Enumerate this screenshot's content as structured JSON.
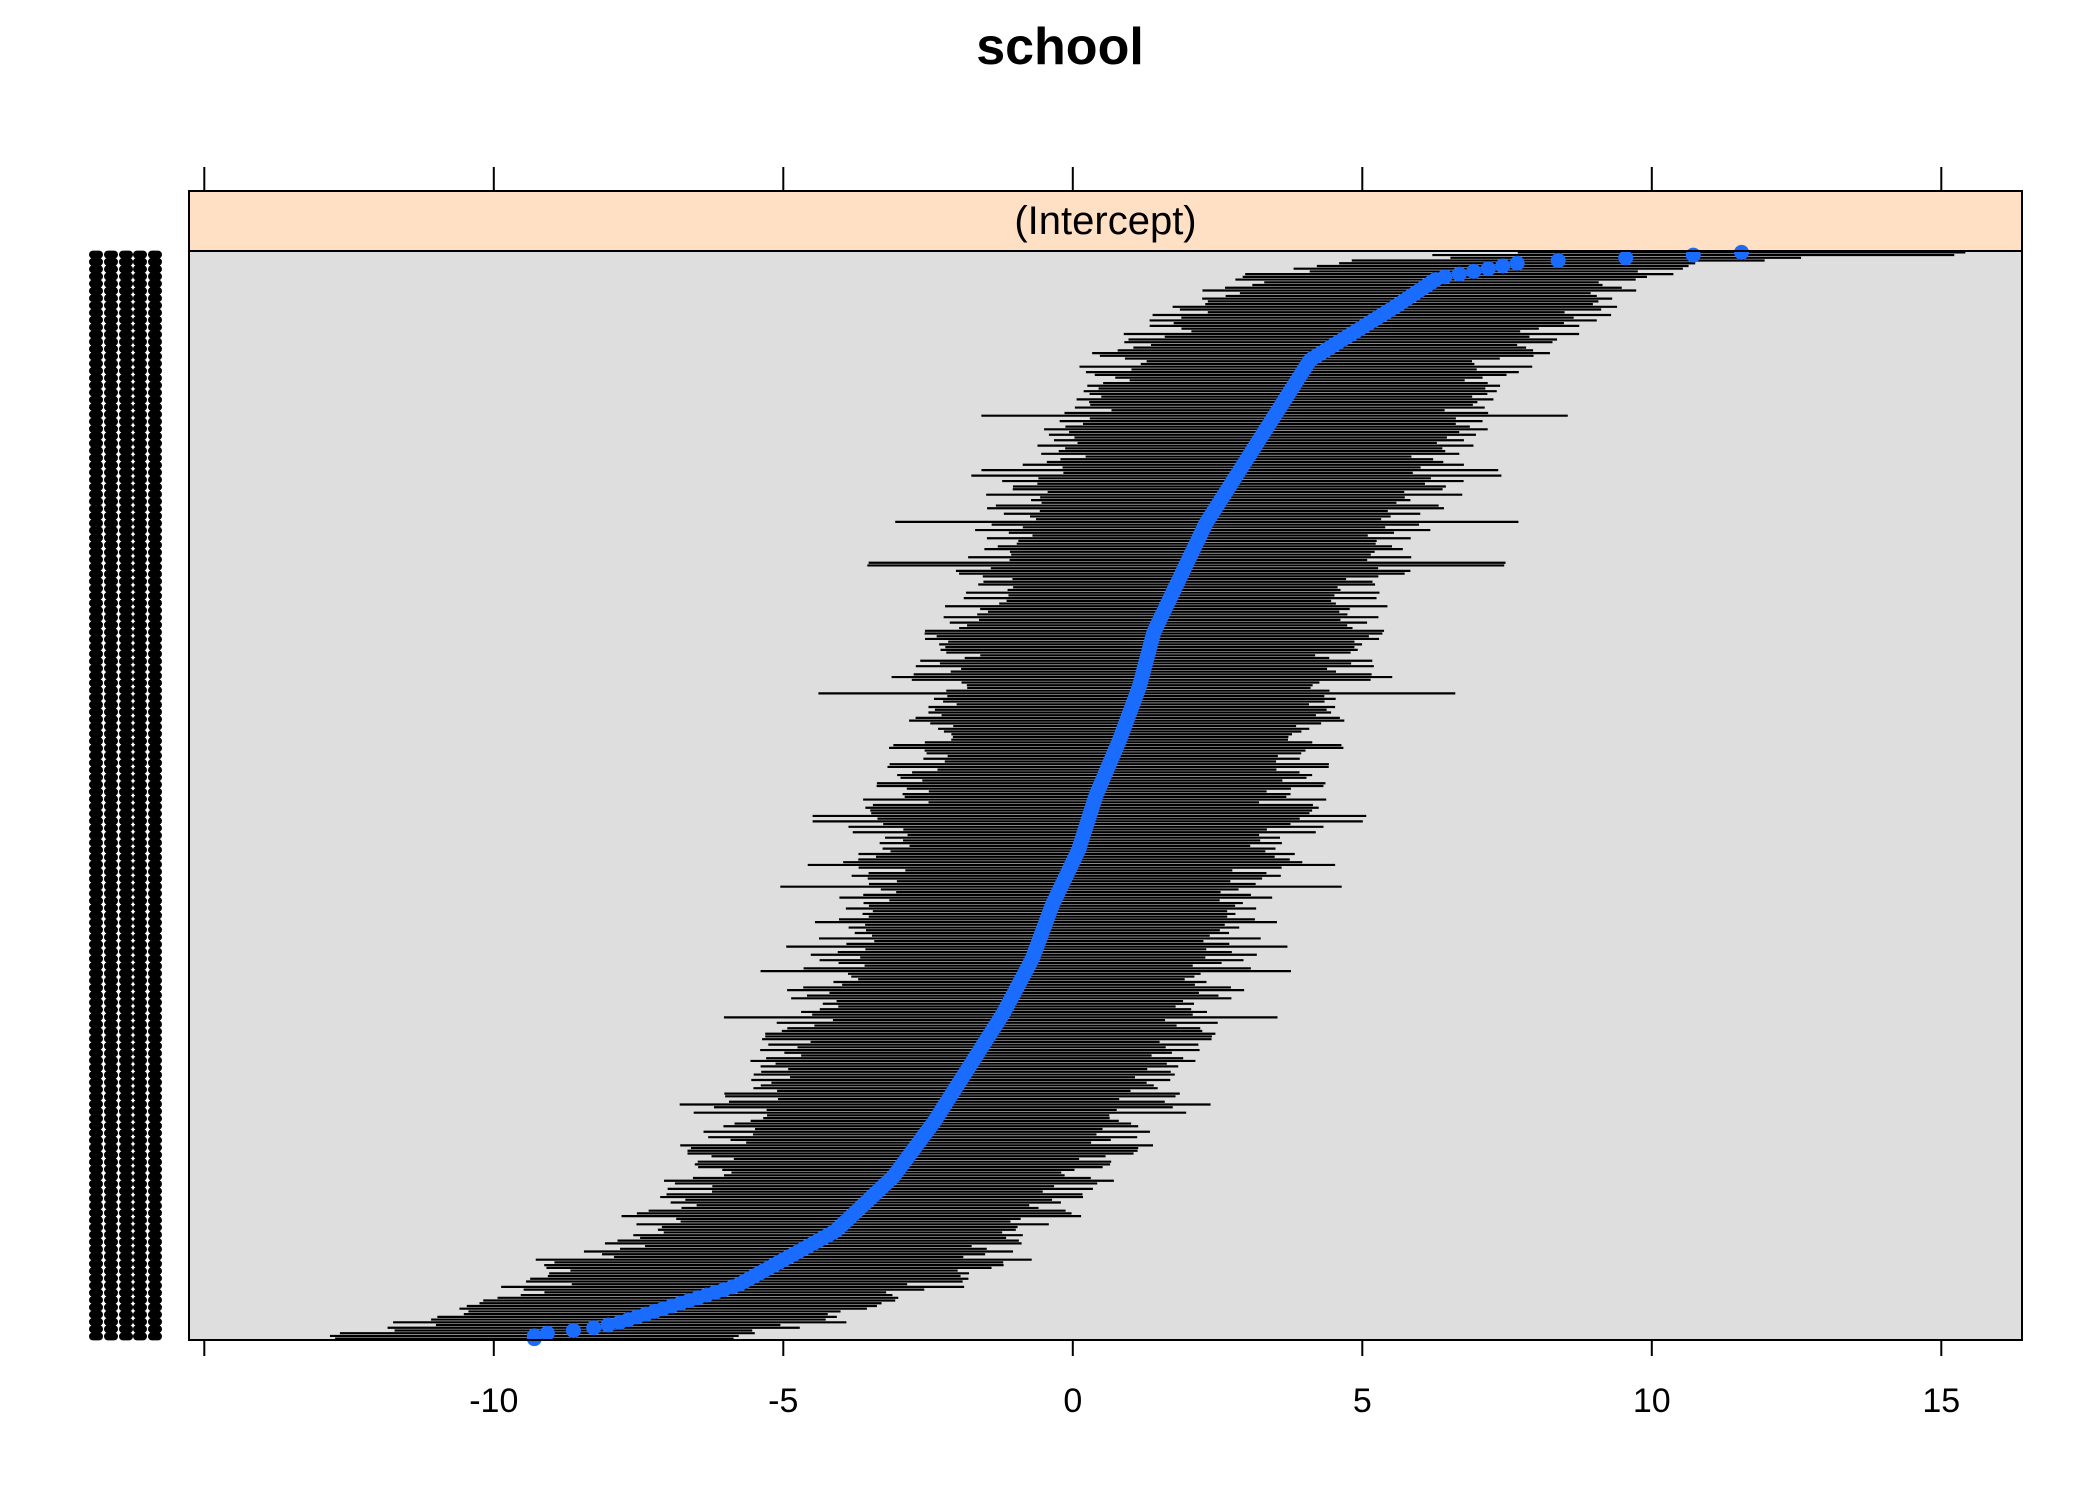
{
  "chart_data": {
    "type": "dotplot",
    "title": "school",
    "strip_label": "(Intercept)",
    "xlabel": "",
    "ylabel": "",
    "xlim": [
      -15,
      16.5
    ],
    "x_ticks": [
      -10,
      -5,
      0,
      5,
      10,
      15
    ],
    "x_tick_labels": [
      "-10",
      "-5",
      "0",
      "5",
      "10",
      "15"
    ],
    "top_axis_ticks_without_labels": true,
    "n_groups": 400,
    "group_labels": "overplotted school identifiers (illegible)",
    "quantile_knots": [
      {
        "q": 0.0,
        "value": -9.3
      },
      {
        "q": 0.005,
        "value": -9.3
      },
      {
        "q": 0.01,
        "value": -8.4
      },
      {
        "q": 0.015,
        "value": -7.9
      },
      {
        "q": 0.02,
        "value": -7.6
      },
      {
        "q": 0.05,
        "value": -5.8
      },
      {
        "q": 0.1,
        "value": -4.1
      },
      {
        "q": 0.15,
        "value": -3.1
      },
      {
        "q": 0.2,
        "value": -2.4
      },
      {
        "q": 0.25,
        "value": -1.8
      },
      {
        "q": 0.3,
        "value": -1.2
      },
      {
        "q": 0.35,
        "value": -0.7
      },
      {
        "q": 0.4,
        "value": -0.35
      },
      {
        "q": 0.45,
        "value": 0.1
      },
      {
        "q": 0.5,
        "value": 0.4
      },
      {
        "q": 0.55,
        "value": 0.8
      },
      {
        "q": 0.6,
        "value": 1.15
      },
      {
        "q": 0.65,
        "value": 1.4
      },
      {
        "q": 0.7,
        "value": 1.85
      },
      {
        "q": 0.75,
        "value": 2.3
      },
      {
        "q": 0.8,
        "value": 2.9
      },
      {
        "q": 0.85,
        "value": 3.5
      },
      {
        "q": 0.9,
        "value": 4.1
      },
      {
        "q": 0.95,
        "value": 5.6
      },
      {
        "q": 0.975,
        "value": 6.3
      },
      {
        "q": 0.99,
        "value": 7.8
      },
      {
        "q": 0.9975,
        "value": 11.3
      },
      {
        "q": 1.0,
        "value": 11.8
      }
    ],
    "interval_halfwidth_typical": 3.4,
    "interval_halfwidth_min": 2.6,
    "interval_halfwidth_max": 5.5,
    "colors": {
      "point": "#1a6cff",
      "interval": "#000000",
      "panel_background": "#dedede",
      "strip_background": "#ffe0c4",
      "frame": "#000000"
    },
    "grid": false,
    "legend": "none"
  }
}
